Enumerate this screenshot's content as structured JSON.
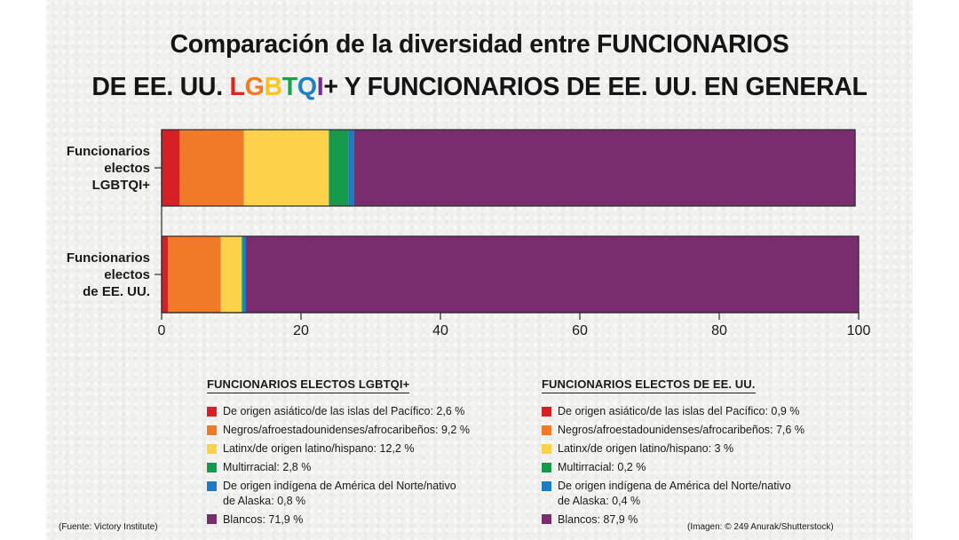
{
  "title": {
    "line1": "Comparación de la diversidad entre FUNCIONARIOS",
    "line2_prefix": "DE EE. UU. ",
    "line2_rainbow": [
      {
        "char": "L",
        "color": "#e2231a"
      },
      {
        "char": "G",
        "color": "#f37a20"
      },
      {
        "char": "B",
        "color": "#fcc41a"
      },
      {
        "char": "T",
        "color": "#1aa14a"
      },
      {
        "char": "Q",
        "color": "#1f7fc3"
      },
      {
        "char": "I",
        "color": "#7b2a8a"
      }
    ],
    "line2_suffix": "+ Y FUNCIONARIOS DE EE. UU. EN GENERAL"
  },
  "chart_data": {
    "type": "bar",
    "orientation": "horizontal",
    "stacked": true,
    "categories": [
      "Funcionarios\nelectos\nLGBTQI+",
      "Funcionarios\nelectos\nde EE. UU."
    ],
    "series": [
      {
        "name": "De origen asiático/de las islas del Pacífico",
        "color": "#d71f26",
        "values": [
          2.6,
          0.9
        ]
      },
      {
        "name": "Negros/afroestadounidenses/afrocaribeños",
        "color": "#f07a28",
        "values": [
          9.2,
          7.6
        ]
      },
      {
        "name": "Latinx/de origen latino/hispano",
        "color": "#fdd14a",
        "values": [
          12.2,
          3
        ]
      },
      {
        "name": "Multirracial",
        "color": "#16994a",
        "values": [
          2.8,
          0.2
        ]
      },
      {
        "name": "De origen indígena de América del Norte/nativo de Alaska",
        "color": "#1f7bc0",
        "values": [
          0.8,
          0.4
        ]
      },
      {
        "name": "Blancos",
        "color": "#7a2d6e",
        "values": [
          71.9,
          87.9
        ]
      }
    ],
    "xlim": [
      0,
      100
    ],
    "xticks": [
      0,
      20,
      40,
      60,
      80,
      100
    ],
    "grid": false
  },
  "legend_left": {
    "heading": "FUNCIONARIOS ELECTOS LGBTQI+",
    "items": [
      {
        "color": "#d71f26",
        "text": "De origen asiático/de las islas del Pacífico: 2,6 %"
      },
      {
        "color": "#f07a28",
        "text": "Negros/afroestadounidenses/afrocaribeños: 9,2 %"
      },
      {
        "color": "#fdd14a",
        "text": "Latinx/de origen latino/hispano: 12,2 %"
      },
      {
        "color": "#16994a",
        "text": "Multirracial: 2,8 %"
      },
      {
        "color": "#1f7bc0",
        "text": "De origen indígena de América del Norte/nativo\nde Alaska: 0,8 %"
      },
      {
        "color": "#7a2d6e",
        "text": "Blancos: 71,9 %"
      }
    ]
  },
  "legend_right": {
    "heading": "FUNCIONARIOS ELECTOS DE EE. UU.",
    "items": [
      {
        "color": "#d71f26",
        "text": "De origen asiático/de las islas del Pacífico: 0,9 %"
      },
      {
        "color": "#f07a28",
        "text": "Negros/afroestadounidenses/afrocaribeños: 7,6 %"
      },
      {
        "color": "#fdd14a",
        "text": "Latinx/de origen latino/hispano: 3 %"
      },
      {
        "color": "#16994a",
        "text": "Multirracial: 0,2 %"
      },
      {
        "color": "#1f7bc0",
        "text": "De origen indígena de América del Norte/nativo\nde Alaska: 0,4 %"
      },
      {
        "color": "#7a2d6e",
        "text": "Blancos: 87,9 %"
      }
    ]
  },
  "source": "(Fuente: Victory Institute)",
  "credit": "(Imagen: © 249 Anurak/Shutterstock)"
}
